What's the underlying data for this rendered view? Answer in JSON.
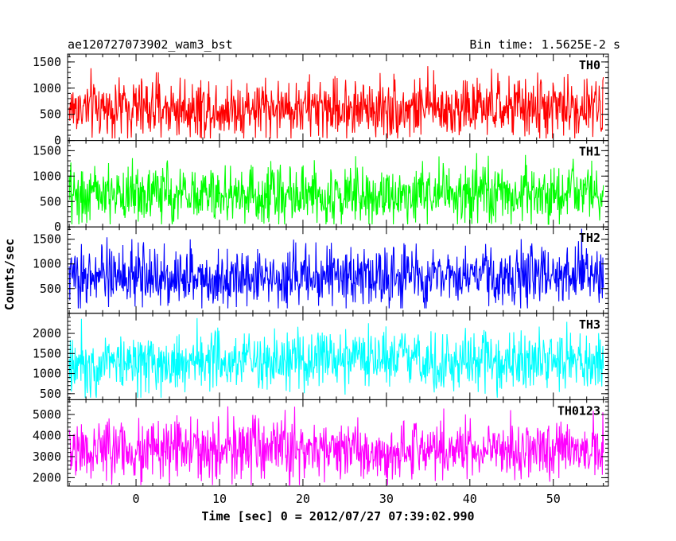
{
  "header": {
    "title": "ae120727073902_wam3_bst",
    "bin_time": "Bin time: 1.5625E-2 s"
  },
  "chart_data": {
    "type": "line",
    "title": "ae120727073902_wam3_bst",
    "xlabel": "Time [sec] 0 = 2012/07/27 07:39:02.990",
    "ylabel": "Counts/sec",
    "xlim": [
      -8.2,
      56.6
    ],
    "x_ticks": [
      0,
      10,
      20,
      30,
      40,
      50
    ],
    "x_range_data": [
      -8,
      56
    ],
    "panels": [
      {
        "name": "TH0",
        "color": "#ff0000",
        "ylim": [
          0,
          1650
        ],
        "y_ticks": [
          0,
          500,
          1000,
          1500
        ],
        "mean": 620,
        "min": 40,
        "max": 1650
      },
      {
        "name": "TH1",
        "color": "#00ff00",
        "ylim": [
          0,
          1700
        ],
        "y_ticks": [
          0,
          500,
          1000,
          1500
        ],
        "mean": 640,
        "min": 50,
        "max": 1650
      },
      {
        "name": "TH2",
        "color": "#0000ff",
        "ylim": [
          0,
          1750
        ],
        "y_ticks": [
          500,
          1000,
          1500
        ],
        "mean": 750,
        "min": 100,
        "max": 1750
      },
      {
        "name": "TH3",
        "color": "#00ffff",
        "ylim": [
          350,
          2500
        ],
        "y_ticks": [
          500,
          1000,
          1500,
          2000
        ],
        "mean": 1300,
        "min": 400,
        "max": 2500
      },
      {
        "name": "TH0123",
        "color": "#ff00ff",
        "ylim": [
          1600,
          5700
        ],
        "y_ticks": [
          2000,
          3000,
          4000,
          5000
        ],
        "mean": 3300,
        "min": 1650,
        "max": 5700
      }
    ]
  }
}
